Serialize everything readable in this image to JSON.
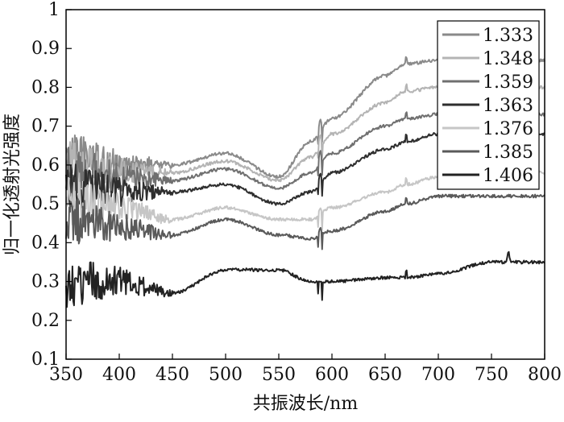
{
  "chart_data": {
    "type": "line",
    "xlabel": "共振波长/nm",
    "ylabel": "归一化透射光强度",
    "xlim": [
      350,
      800
    ],
    "ylim": [
      0.1,
      1.0
    ],
    "x_ticks": [
      350,
      400,
      450,
      500,
      550,
      600,
      650,
      700,
      750,
      800
    ],
    "x_tick_labels": [
      "350",
      "400",
      "450",
      "500",
      "550",
      "600",
      "650",
      "700",
      "750",
      "800"
    ],
    "y_ticks": [
      0.1,
      0.2,
      0.3,
      0.4,
      0.5,
      0.6,
      0.7,
      0.8,
      0.9,
      1.0
    ],
    "y_tick_labels": [
      "0.1",
      "0.2",
      "0.3",
      "0.4",
      "0.5",
      "0.6",
      "0.7",
      "0.8",
      "0.9",
      "1"
    ],
    "legend_position": "top-right",
    "grid": false,
    "x": [
      350,
      400,
      450,
      500,
      550,
      580,
      589,
      600,
      650,
      670,
      700,
      750,
      800
    ],
    "series": [
      {
        "name": "1.333",
        "color": "#8a8a8a",
        "values": [
          0.62,
          0.6,
          0.6,
          0.63,
          0.57,
          0.66,
          0.72,
          0.72,
          0.83,
          0.86,
          0.87,
          0.87,
          0.87
        ]
      },
      {
        "name": "1.348",
        "color": "#b4b4b4",
        "values": [
          0.6,
          0.58,
          0.58,
          0.61,
          0.56,
          0.62,
          0.68,
          0.68,
          0.76,
          0.79,
          0.8,
          0.8,
          0.8
        ]
      },
      {
        "name": "1.359",
        "color": "#707070",
        "values": [
          0.59,
          0.57,
          0.56,
          0.59,
          0.54,
          0.58,
          0.64,
          0.63,
          0.7,
          0.72,
          0.73,
          0.73,
          0.73
        ]
      },
      {
        "name": "1.363",
        "color": "#2e2e2e",
        "values": [
          0.55,
          0.53,
          0.53,
          0.55,
          0.5,
          0.53,
          0.58,
          0.58,
          0.64,
          0.66,
          0.68,
          0.68,
          0.68
        ]
      },
      {
        "name": "1.376",
        "color": "#c6c6c6",
        "values": [
          0.51,
          0.49,
          0.46,
          0.49,
          0.46,
          0.46,
          0.49,
          0.49,
          0.53,
          0.55,
          0.57,
          0.58,
          0.58
        ]
      },
      {
        "name": "1.385",
        "color": "#5a5a5a",
        "values": [
          0.46,
          0.44,
          0.42,
          0.46,
          0.42,
          0.41,
          0.44,
          0.43,
          0.48,
          0.5,
          0.52,
          0.52,
          0.52
        ]
      },
      {
        "name": "1.406",
        "color": "#222222",
        "values": [
          0.3,
          0.3,
          0.27,
          0.33,
          0.33,
          0.3,
          0.3,
          0.3,
          0.31,
          0.31,
          0.32,
          0.35,
          0.35
        ]
      }
    ]
  }
}
